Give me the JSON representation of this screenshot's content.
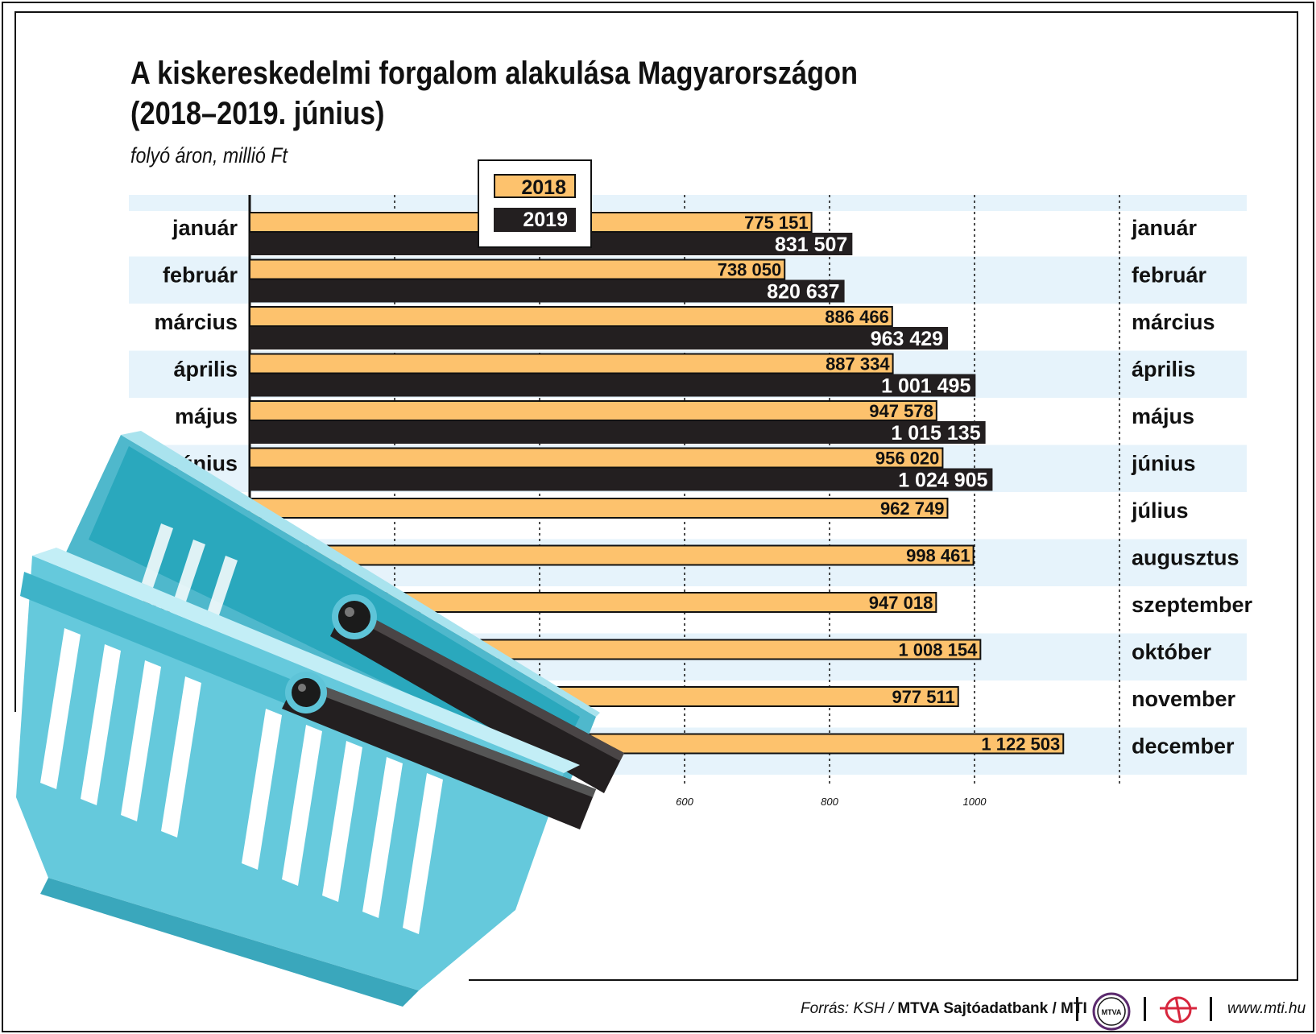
{
  "title_line1": "A kiskereskedelmi forgalom alakulása Magyarországon",
  "title_line2": "(2018–2019. június)",
  "subtitle": "folyó áron, millió Ft",
  "legend": {
    "y2018": "2018",
    "y2019": "2019"
  },
  "colors": {
    "bar_2018": "#fdc26d",
    "bar_2019": "#231f20",
    "band": "#e6f3fb",
    "basket": "#5ec4d8"
  },
  "chart_data": {
    "type": "bar",
    "orientation": "horizontal",
    "categories": [
      "január",
      "február",
      "március",
      "április",
      "május",
      "június",
      "július",
      "augusztus",
      "szeptember",
      "október",
      "november",
      "december"
    ],
    "series": [
      {
        "name": "2018",
        "values": [
          775151,
          738050,
          886466,
          887334,
          947578,
          956020,
          962749,
          998461,
          947018,
          1008154,
          977511,
          1122503
        ],
        "labels": [
          "775 151",
          "738 050",
          "886 466",
          "887 334",
          "947 578",
          "956 020",
          "962 749",
          "998 461",
          "947 018",
          "1 008 154",
          "977 511",
          "1 122 503"
        ]
      },
      {
        "name": "2019",
        "values": [
          831507,
          820637,
          963429,
          1001495,
          1015135,
          1024905,
          null,
          null,
          null,
          null,
          null,
          null
        ],
        "labels": [
          "831 507",
          "820 637",
          "963 429",
          "1 001 495",
          "1 015 135",
          "1 024 905",
          "",
          "",
          "",
          "",
          "",
          ""
        ]
      }
    ],
    "x_ticks": [
      "600",
      "800",
      "1000"
    ],
    "x_tick_values": [
      600,
      800,
      1000
    ],
    "xlim": [
      0,
      1400
    ],
    "tick_unit": "ezer millió",
    "grid": true,
    "legend_position": "top-center"
  },
  "footer": {
    "source_prefix": "Forrás: KSH / ",
    "source_bold": "MTVA Sajtóadatbank / MTI",
    "mtva_logo_text": "MTVA",
    "url": "www.mti.hu"
  }
}
